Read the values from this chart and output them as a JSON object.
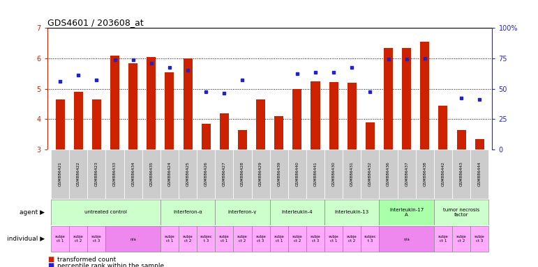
{
  "title": "GDS4601 / 203608_at",
  "bar_values": [
    4.65,
    4.9,
    4.65,
    6.1,
    5.85,
    6.05,
    5.55,
    6.0,
    3.85,
    4.2,
    3.65,
    4.65,
    4.1,
    5.0,
    5.25,
    5.22,
    5.2,
    3.9,
    6.35,
    6.35,
    6.55,
    4.45,
    3.65,
    3.35
  ],
  "blue_values": [
    5.25,
    5.45,
    5.3,
    5.95,
    5.95,
    5.85,
    5.7,
    5.6,
    4.9,
    4.85,
    5.3,
    null,
    null,
    5.5,
    5.55,
    5.55,
    5.7,
    4.9,
    5.98,
    5.98,
    6.0,
    null,
    4.7,
    4.65
  ],
  "x_labels": [
    "GSM886421",
    "GSM886422",
    "GSM886423",
    "GSM886433",
    "GSM886434",
    "GSM886435",
    "GSM886424",
    "GSM886425",
    "GSM886426",
    "GSM886427",
    "GSM886428",
    "GSM886429",
    "GSM886439",
    "GSM886440",
    "GSM886441",
    "GSM886430",
    "GSM886431",
    "GSM886432",
    "GSM886436",
    "GSM886437",
    "GSM886438",
    "GSM886442",
    "GSM886443",
    "GSM886444"
  ],
  "ylim": [
    3.0,
    7.0
  ],
  "yticks_left": [
    3,
    4,
    5,
    6,
    7
  ],
  "yticks_right": [
    0,
    25,
    50,
    75,
    100
  ],
  "ytick_right_labels": [
    "0",
    "25",
    "50",
    "75",
    "100%"
  ],
  "bar_color": "#cc2200",
  "blue_color": "#2222cc",
  "bg_color": "#ffffff",
  "gsm_bg": "#cccccc",
  "agent_groups": [
    {
      "start": 0,
      "end": 5,
      "label": "untreated control",
      "color": "#ccffcc"
    },
    {
      "start": 6,
      "end": 8,
      "label": "interferon-α",
      "color": "#ccffcc"
    },
    {
      "start": 9,
      "end": 11,
      "label": "interferon-γ",
      "color": "#ccffcc"
    },
    {
      "start": 12,
      "end": 14,
      "label": "interleukin-4",
      "color": "#ccffcc"
    },
    {
      "start": 15,
      "end": 17,
      "label": "interleukin-13",
      "color": "#ccffcc"
    },
    {
      "start": 18,
      "end": 20,
      "label": "interleukin-17\nA",
      "color": "#aaffaa"
    },
    {
      "start": 21,
      "end": 23,
      "label": "tumor necrosis\nfactor",
      "color": "#ccffcc"
    }
  ],
  "indiv_groups": [
    {
      "start": 0,
      "end": 0,
      "label": "subje\nct 1",
      "color": "#ffaaff"
    },
    {
      "start": 1,
      "end": 1,
      "label": "subje\nct 2",
      "color": "#ffaaff"
    },
    {
      "start": 2,
      "end": 2,
      "label": "subje\nct 3",
      "color": "#ffaaff"
    },
    {
      "start": 3,
      "end": 5,
      "label": "n/a",
      "color": "#ee88ee"
    },
    {
      "start": 6,
      "end": 6,
      "label": "subje\nct 1",
      "color": "#ffaaff"
    },
    {
      "start": 7,
      "end": 7,
      "label": "subje\nct 2",
      "color": "#ffaaff"
    },
    {
      "start": 8,
      "end": 8,
      "label": "subjec\nt 3",
      "color": "#ffaaff"
    },
    {
      "start": 9,
      "end": 9,
      "label": "subje\nct 1",
      "color": "#ffaaff"
    },
    {
      "start": 10,
      "end": 10,
      "label": "subje\nct 2",
      "color": "#ffaaff"
    },
    {
      "start": 11,
      "end": 11,
      "label": "subje\nct 3",
      "color": "#ffaaff"
    },
    {
      "start": 12,
      "end": 12,
      "label": "subje\nct 1",
      "color": "#ffaaff"
    },
    {
      "start": 13,
      "end": 13,
      "label": "subje\nct 2",
      "color": "#ffaaff"
    },
    {
      "start": 14,
      "end": 14,
      "label": "subje\nct 3",
      "color": "#ffaaff"
    },
    {
      "start": 15,
      "end": 15,
      "label": "subje\nct 1",
      "color": "#ffaaff"
    },
    {
      "start": 16,
      "end": 16,
      "label": "subje\nct 2",
      "color": "#ffaaff"
    },
    {
      "start": 17,
      "end": 17,
      "label": "subjec\nt 3",
      "color": "#ffaaff"
    },
    {
      "start": 18,
      "end": 20,
      "label": "n/a",
      "color": "#ee88ee"
    },
    {
      "start": 21,
      "end": 21,
      "label": "subje\nct 1",
      "color": "#ffaaff"
    },
    {
      "start": 22,
      "end": 22,
      "label": "subje\nct 2",
      "color": "#ffaaff"
    },
    {
      "start": 23,
      "end": 23,
      "label": "subje\nct 3",
      "color": "#ffaaff"
    }
  ]
}
